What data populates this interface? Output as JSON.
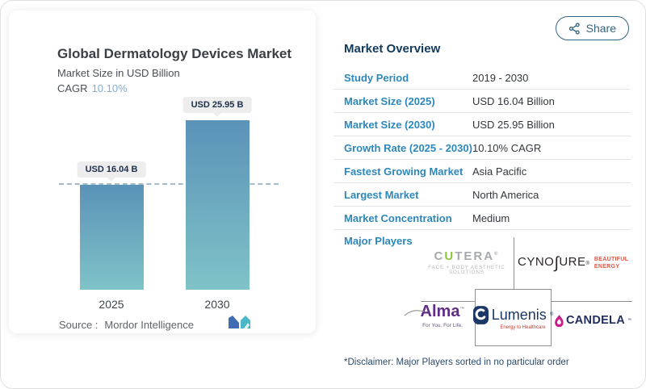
{
  "share": {
    "label": "Share"
  },
  "chart_panel": {
    "title": "Global Dermatology Devices Market",
    "subtitle": "Market Size in USD Billion",
    "cagr_label": "CAGR",
    "cagr_value": "10.10%",
    "source_label": "Source :",
    "source_value": "Mordor Intelligence"
  },
  "chart_data": {
    "type": "bar",
    "title": "Global Dermatology Devices Market",
    "ylabel": "Market Size in USD Billion",
    "categories": [
      "2025",
      "2030"
    ],
    "values": [
      16.04,
      25.95
    ],
    "value_labels": [
      "USD 16.04 B",
      "USD 25.95 B"
    ],
    "unit": "USD Billion",
    "ylim": [
      0,
      28
    ],
    "reference_value": 16.04,
    "bar_gradient_top": "#5b92b8",
    "bar_gradient_bottom": "#7fc3c7",
    "grid": false,
    "legend": false
  },
  "overview": {
    "heading": "Market Overview",
    "rows": [
      {
        "label": "Study Period",
        "value": "2019 - 2030"
      },
      {
        "label": "Market Size (2025)",
        "value": "USD 16.04 Billion"
      },
      {
        "label": "Market Size (2030)",
        "value": "USD 25.95 Billion"
      },
      {
        "label": "Growth Rate (2025 - 2030)",
        "value": "10.10% CAGR"
      },
      {
        "label": "Fastest Growing Market",
        "value": "Asia Pacific"
      },
      {
        "label": "Largest Market",
        "value": "North America"
      },
      {
        "label": "Market Concentration",
        "value": "Medium"
      }
    ],
    "major_players_label": "Major Players",
    "disclaimer": "*Disclaimer: Major Players sorted in no particular order"
  },
  "logos": {
    "cutera": {
      "prefix": "C",
      "highlight": "U",
      "suffix": "TERA",
      "tagline": "FACE + BODY AESTHETIC SOLUTIONS"
    },
    "cynosure": {
      "part1": "CYNO",
      "stylized_s": "∫",
      "part2": "URE",
      "tagline_line1": "BEAUTIFUL",
      "tagline_line2": "ENERGY"
    },
    "alma": {
      "name": "Alma",
      "tagline": "For You. For Life."
    },
    "lumenis": {
      "name": "Lumenis",
      "tagline": "Energy to Healthcare"
    },
    "candela": {
      "name": "CANDELA"
    }
  },
  "marks": {
    "registered": "®",
    "trademark": "™"
  },
  "colors": {
    "accent_blue": "#2d87ba",
    "heading_navy": "#123a5c",
    "share_teal": "#33647f",
    "cagr_blue": "#84aed2",
    "bar_top": "#5b92b8",
    "bar_bottom": "#7fc3c7",
    "cutera_green": "#8dc63f",
    "cynosure_red": "#e0543e",
    "alma_purple": "#5f2c87",
    "lumenis_navy": "#1d3867",
    "candela_magenta": "#cb1d8c",
    "mordor_blue": "#3f6db4",
    "mordor_teal": "#49b8c8"
  }
}
